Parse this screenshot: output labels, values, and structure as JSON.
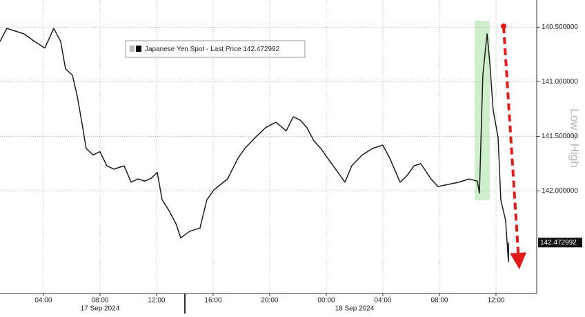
{
  "chart_data": {
    "type": "line",
    "legend_label": "Japanese Yen Spot - Last Price",
    "last_price": 142.472992,
    "y_axis_title": "Low > High",
    "inverted": true,
    "grid": true,
    "series": [
      {
        "name": "Japanese Yen Spot - Last Price",
        "color": "#1a1a1a",
        "x": [
          0.93,
          1.41,
          1.9,
          2.63,
          3.37,
          4.1,
          4.73,
          5.22,
          5.56,
          6.05,
          6.39,
          6.78,
          7.02,
          7.51,
          8.0,
          8.49,
          8.98,
          9.71,
          10.2,
          10.68,
          11.17,
          11.66,
          12.05,
          12.39,
          12.88,
          13.37,
          13.71,
          14.34,
          15.07,
          15.56,
          16.05,
          16.54,
          17.02,
          17.76,
          18.24,
          18.98,
          19.71,
          20.44,
          21.17,
          21.66,
          22.15,
          22.63,
          23.12,
          23.61,
          24.1,
          24.83,
          25.32,
          25.8,
          26.54,
          27.27,
          28.0,
          28.49,
          29.22,
          29.71,
          30.2,
          30.68,
          31.41,
          31.9,
          32.63,
          33.37,
          34.1,
          34.68,
          34.83,
          35.07,
          35.37,
          35.56,
          35.8,
          36.15,
          36.34,
          36.68,
          36.88,
          36.9
        ],
        "values": [
          140.63,
          140.51,
          140.53,
          140.56,
          140.63,
          140.69,
          140.51,
          140.63,
          140.88,
          140.94,
          141.13,
          141.42,
          141.61,
          141.67,
          141.64,
          141.77,
          141.8,
          141.77,
          141.92,
          141.89,
          141.91,
          141.88,
          141.83,
          142.08,
          142.18,
          142.3,
          142.43,
          142.37,
          142.34,
          142.08,
          141.99,
          141.94,
          141.89,
          141.7,
          141.61,
          141.51,
          141.42,
          141.37,
          141.45,
          141.32,
          141.35,
          141.42,
          141.54,
          141.61,
          141.7,
          141.83,
          141.92,
          141.77,
          141.67,
          141.61,
          141.58,
          141.7,
          141.92,
          141.86,
          141.77,
          141.75,
          141.89,
          141.96,
          141.94,
          141.92,
          141.89,
          141.91,
          142.02,
          140.94,
          140.56,
          140.82,
          141.26,
          141.51,
          142.08,
          142.27,
          142.65,
          142.472992
        ]
      }
    ],
    "highlight": [
      34.49,
      35.56
    ],
    "highlight_color": "#cfeecb",
    "xlim": [
      0.93,
      38.88
    ],
    "xticks": [
      {
        "value": 4,
        "label": "04:00"
      },
      {
        "value": 8,
        "label": "08:00"
      },
      {
        "value": 12,
        "label": "12:00"
      },
      {
        "value": 16,
        "label": "16:00"
      },
      {
        "value": 20,
        "label": "20:00"
      },
      {
        "value": 24,
        "label": "00:00"
      },
      {
        "value": 28,
        "label": "04:00"
      },
      {
        "value": 32,
        "label": "08:00"
      },
      {
        "value": 36,
        "label": "12:00"
      }
    ],
    "date_labels": [
      {
        "value": 8,
        "label": "17 Sep 2024"
      },
      {
        "value": 26,
        "label": "18 Sep 2024"
      }
    ],
    "ylim": [
      140.25,
      142.94
    ],
    "yticks": [
      {
        "value": 140.5,
        "label": "140.500000"
      },
      {
        "value": 141,
        "label": "141.000000"
      },
      {
        "value": 141.5,
        "label": "141.500000"
      },
      {
        "value": 142,
        "label": "142.000000"
      }
    ]
  }
}
